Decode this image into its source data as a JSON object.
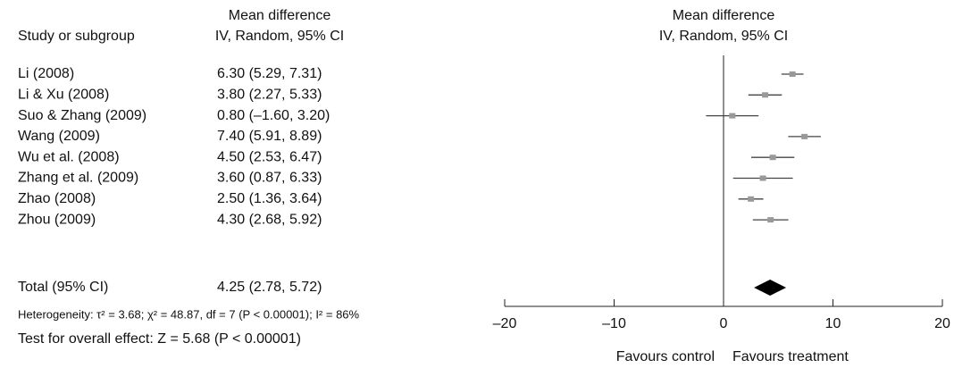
{
  "chart_data": {
    "type": "forest",
    "study_header": "Study or subgroup",
    "left_header": [
      "Mean difference",
      "IV, Random, 95% CI"
    ],
    "right_header": [
      "Mean difference",
      "IV, Random, 95% CI"
    ],
    "categories": [
      "Li (2008)",
      "Li & Xu (2008)",
      "Suo & Zhang (2009)",
      "Wang (2009)",
      "Wu et al. (2008)",
      "Zhang et al. (2009)",
      "Zhao (2008)",
      "Zhou (2009)"
    ],
    "values": [
      6.3,
      3.8,
      0.8,
      7.4,
      4.5,
      3.6,
      2.5,
      4.3
    ],
    "lower": [
      5.29,
      2.27,
      -1.6,
      5.91,
      2.53,
      0.87,
      1.36,
      2.68
    ],
    "upper": [
      7.31,
      5.33,
      3.2,
      8.89,
      6.47,
      6.33,
      3.64,
      5.92
    ],
    "value_labels": [
      "6.30 (5.29, 7.31)",
      "3.80 (2.27, 5.33)",
      "0.80 (–1.60, 3.20)",
      "7.40 (5.91, 8.89)",
      "4.50 (2.53, 6.47)",
      "3.60 (0.87, 6.33)",
      "2.50 (1.36, 3.64)",
      "4.30 (2.68, 5.92)"
    ],
    "total": {
      "name": "Total (95% CI)",
      "value": 4.25,
      "lower": 2.78,
      "upper": 5.72,
      "label": "4.25 (2.78, 5.72)"
    },
    "heterogeneity": "Heterogeneity: τ² = 3.68; χ² = 48.87, df = 7 (P < 0.00001); I² = 86%",
    "overall_effect": "Test for overall effect: Z = 5.68 (P < 0.00001)",
    "xlim": [
      -20,
      20
    ],
    "xticks": [
      {
        "value": -20,
        "label": "–20"
      },
      {
        "value": -10,
        "label": "–10"
      },
      0,
      10,
      20
    ],
    "xlabel_left": "Favours control",
    "xlabel_right": "Favours treatment",
    "marker_color": "#999999",
    "line_color": "#444444",
    "diamond_color": "#000000"
  }
}
